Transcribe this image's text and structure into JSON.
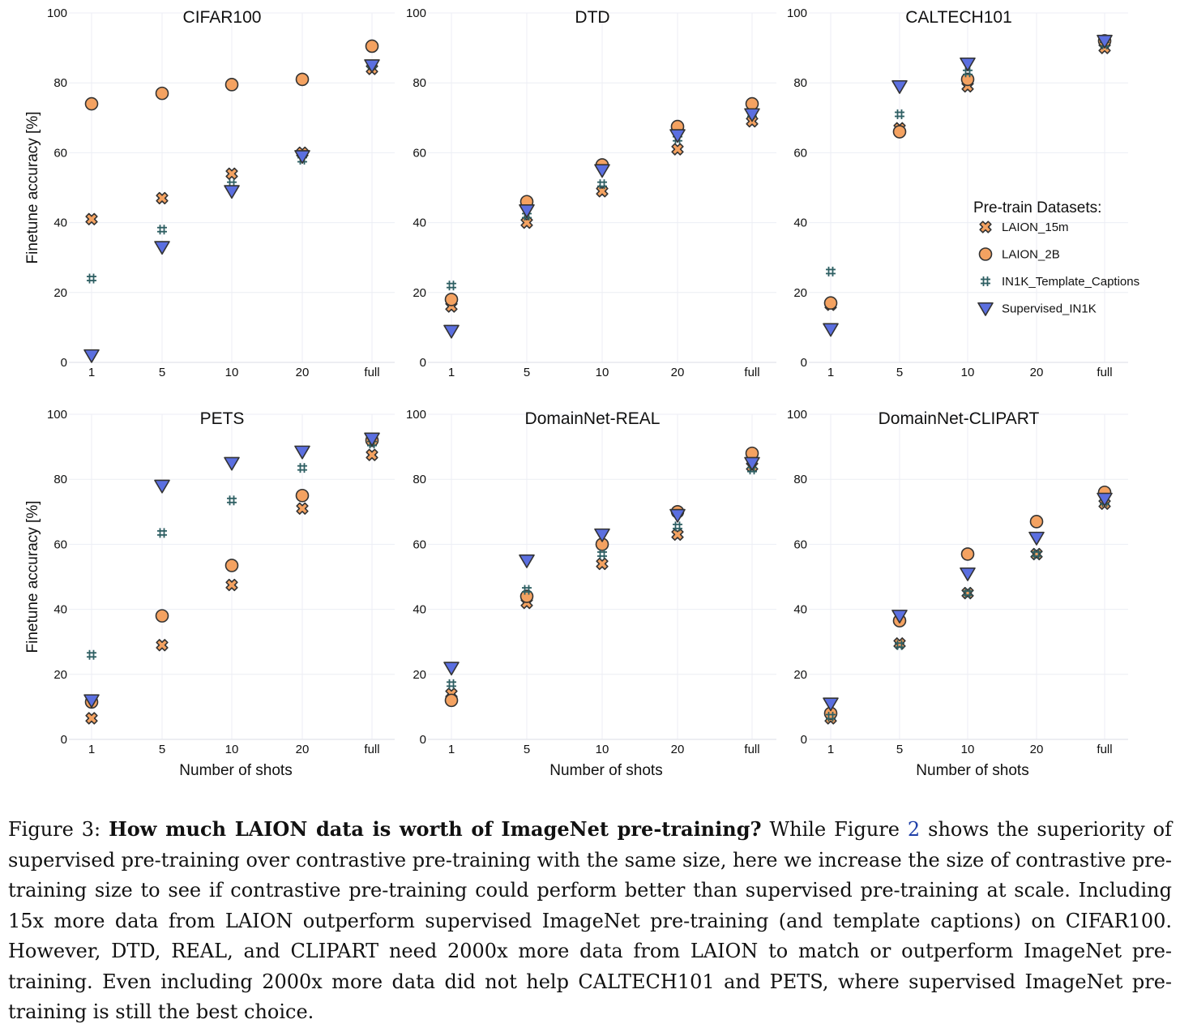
{
  "figure": {
    "x_axis_label": "Number of shots",
    "y_axis_label": "Finetune accuracy [%]",
    "caption": {
      "prefix": "Figure 3: ",
      "bold": "How much LAION data is worth of ImageNet pre-training?",
      "text_a": " While Figure ",
      "ref": "2",
      "text_b": " shows the superiority of supervised pre-training over contrastive pre-training with the same size, here we increase the size of contrastive pre-training size to see if contrastive pre-training could perform better than supervised pre-training at scale. Including 15x more data from LAION outperform supervised ImageNet pre-training (and template captions) on CIFAR100. However, DTD, REAL, and CLIPART need 2000x more data from LAION to match or outperform ImageNet pre-training.  Even including 2000x more data did not help CALTECH101 and PETS, where supervised ImageNet pre-training is still the best choice."
    },
    "legend": {
      "title": "Pre-train Datasets:",
      "placement": "in CALTECH101 panel, right",
      "entries": [
        "LAION_15m",
        "LAION_2B",
        "IN1K_Template_Captions",
        "Supervised_IN1K"
      ]
    },
    "colors": {
      "orange": "#f4a261",
      "blue": "#5b6fe0",
      "teal": "#2e5f63",
      "edge": "#333333",
      "grid": "#eceef4"
    }
  },
  "chart_data": [
    {
      "type": "scatter",
      "title": "CIFAR100",
      "categories": [
        "1",
        "5",
        "10",
        "20",
        "full"
      ],
      "ylim": [
        0,
        100
      ],
      "yticks": [
        0,
        20,
        40,
        60,
        80,
        100
      ],
      "grid": true,
      "series": [
        {
          "name": "LAION_15m",
          "values": [
            41,
            47,
            54,
            60,
            84
          ]
        },
        {
          "name": "LAION_2B",
          "values": [
            74,
            77,
            79.5,
            81,
            90.5
          ]
        },
        {
          "name": "IN1K_Template_Captions",
          "values": [
            24,
            38,
            51,
            58,
            85
          ]
        },
        {
          "name": "Supervised_IN1K",
          "values": [
            2,
            33,
            49,
            59,
            85
          ]
        }
      ]
    },
    {
      "type": "scatter",
      "title": "DTD",
      "categories": [
        "1",
        "5",
        "10",
        "20",
        "full"
      ],
      "ylim": [
        0,
        100
      ],
      "yticks": [
        0,
        20,
        40,
        60,
        80,
        100
      ],
      "grid": true,
      "series": [
        {
          "name": "LAION_15m",
          "values": [
            16,
            40,
            49,
            61,
            69
          ]
        },
        {
          "name": "LAION_2B",
          "values": [
            18,
            46,
            56.5,
            67.5,
            74
          ]
        },
        {
          "name": "IN1K_Template_Captions",
          "values": [
            22,
            42,
            51,
            64,
            71
          ]
        },
        {
          "name": "Supervised_IN1K",
          "values": [
            9,
            43.5,
            55,
            65,
            71
          ]
        }
      ]
    },
    {
      "type": "scatter",
      "title": "CALTECH101",
      "categories": [
        "1",
        "5",
        "10",
        "20",
        "full"
      ],
      "ylim": [
        0,
        100
      ],
      "yticks": [
        0,
        20,
        40,
        60,
        80,
        100
      ],
      "grid": true,
      "series": [
        {
          "name": "LAION_15m",
          "values": [
            16.5,
            67,
            79,
            null,
            90
          ]
        },
        {
          "name": "LAION_2B",
          "values": [
            17,
            66,
            81,
            null,
            92
          ]
        },
        {
          "name": "IN1K_Template_Captions",
          "values": [
            26,
            71,
            83,
            null,
            91
          ]
        },
        {
          "name": "Supervised_IN1K",
          "values": [
            9.5,
            79,
            85.5,
            null,
            92
          ]
        }
      ]
    },
    {
      "type": "scatter",
      "title": "PETS",
      "categories": [
        "1",
        "5",
        "10",
        "20",
        "full"
      ],
      "ylim": [
        0,
        100
      ],
      "yticks": [
        0,
        20,
        40,
        60,
        80,
        100
      ],
      "grid": true,
      "series": [
        {
          "name": "LAION_15m",
          "values": [
            6.5,
            29,
            47.5,
            71,
            87.5
          ]
        },
        {
          "name": "LAION_2B",
          "values": [
            11.5,
            38,
            53.5,
            75,
            92
          ]
        },
        {
          "name": "IN1K_Template_Captions",
          "values": [
            26,
            63.5,
            73.5,
            83.5,
            91
          ]
        },
        {
          "name": "Supervised_IN1K",
          "values": [
            12,
            78,
            85,
            88.5,
            92.5
          ]
        }
      ]
    },
    {
      "type": "scatter",
      "title": "DomainNet-REAL",
      "categories": [
        "1",
        "5",
        "10",
        "20",
        "full"
      ],
      "ylim": [
        0,
        100
      ],
      "yticks": [
        0,
        20,
        40,
        60,
        80,
        100
      ],
      "grid": true,
      "series": [
        {
          "name": "LAION_15m",
          "values": [
            14,
            42,
            54,
            63,
            84
          ]
        },
        {
          "name": "LAION_2B",
          "values": [
            12,
            44,
            60,
            70,
            88
          ]
        },
        {
          "name": "IN1K_Template_Captions",
          "values": [
            17,
            46,
            57,
            65.5,
            83
          ]
        },
        {
          "name": "Supervised_IN1K",
          "values": [
            22,
            55,
            63,
            69,
            85
          ]
        }
      ]
    },
    {
      "type": "scatter",
      "title": "DomainNet-CLIPART",
      "categories": [
        "1",
        "5",
        "10",
        "20",
        "full"
      ],
      "ylim": [
        0,
        100
      ],
      "yticks": [
        0,
        20,
        40,
        60,
        80,
        100
      ],
      "grid": true,
      "series": [
        {
          "name": "LAION_15m",
          "values": [
            6.5,
            29.5,
            45,
            57,
            72.5
          ]
        },
        {
          "name": "LAION_2B",
          "values": [
            8,
            36.5,
            57,
            67,
            76
          ]
        },
        {
          "name": "IN1K_Template_Captions",
          "values": [
            7,
            29,
            45,
            57,
            73
          ]
        },
        {
          "name": "Supervised_IN1K",
          "values": [
            11,
            38,
            51,
            62,
            74
          ]
        }
      ]
    }
  ]
}
